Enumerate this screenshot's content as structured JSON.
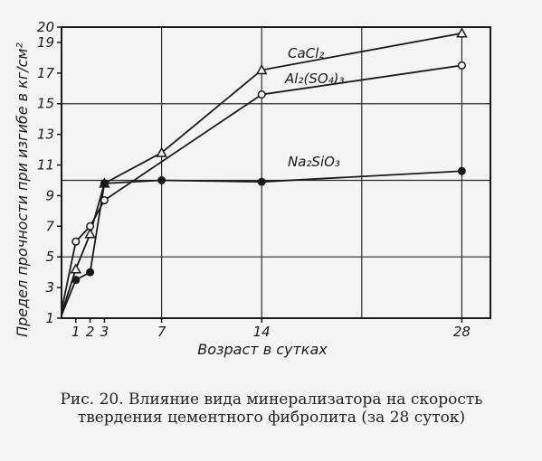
{
  "caption": "Рис. 20. Влияние вида минерализатора на скорость твердения цементного фибролита (за 28 суток)",
  "chart_data": {
    "type": "line",
    "title": "",
    "xlabel": "Возраст в сутках",
    "ylabel": "Предел прочности при изгибе в кг/см²",
    "xlim": [
      0,
      30
    ],
    "ylim": [
      1,
      20
    ],
    "x_ticks": [
      1,
      2,
      3,
      7,
      14,
      28
    ],
    "x_tick_labels": [
      "1",
      "2",
      "3",
      "7",
      "14",
      "28"
    ],
    "y_ticks": [
      1,
      3,
      5,
      7,
      9,
      11,
      13,
      15,
      17,
      19,
      20
    ],
    "y_tick_labels": [
      "1",
      "3",
      "5",
      "7",
      "9",
      "11",
      "13",
      "15",
      "17",
      "19",
      "20"
    ],
    "grid": true,
    "series": [
      {
        "name": "CaCl₂",
        "marker": "triangle",
        "x": [
          0,
          1,
          2,
          3,
          7,
          14,
          28
        ],
        "y": [
          1.3,
          4.2,
          6.5,
          9.8,
          11.8,
          17.2,
          19.6
        ]
      },
      {
        "name": "Al₂(SO₄)₃",
        "marker": "circle-open",
        "x": [
          0,
          1,
          2,
          3,
          14,
          28
        ],
        "y": [
          1.5,
          6.0,
          7.0,
          8.7,
          15.6,
          17.5
        ]
      },
      {
        "name": "Na₂SiO₃",
        "marker": "circle-filled",
        "x": [
          0,
          1,
          2,
          3,
          7,
          14,
          28
        ],
        "y": [
          1.2,
          3.5,
          4.0,
          9.8,
          10.0,
          9.9,
          10.6
        ]
      }
    ]
  }
}
